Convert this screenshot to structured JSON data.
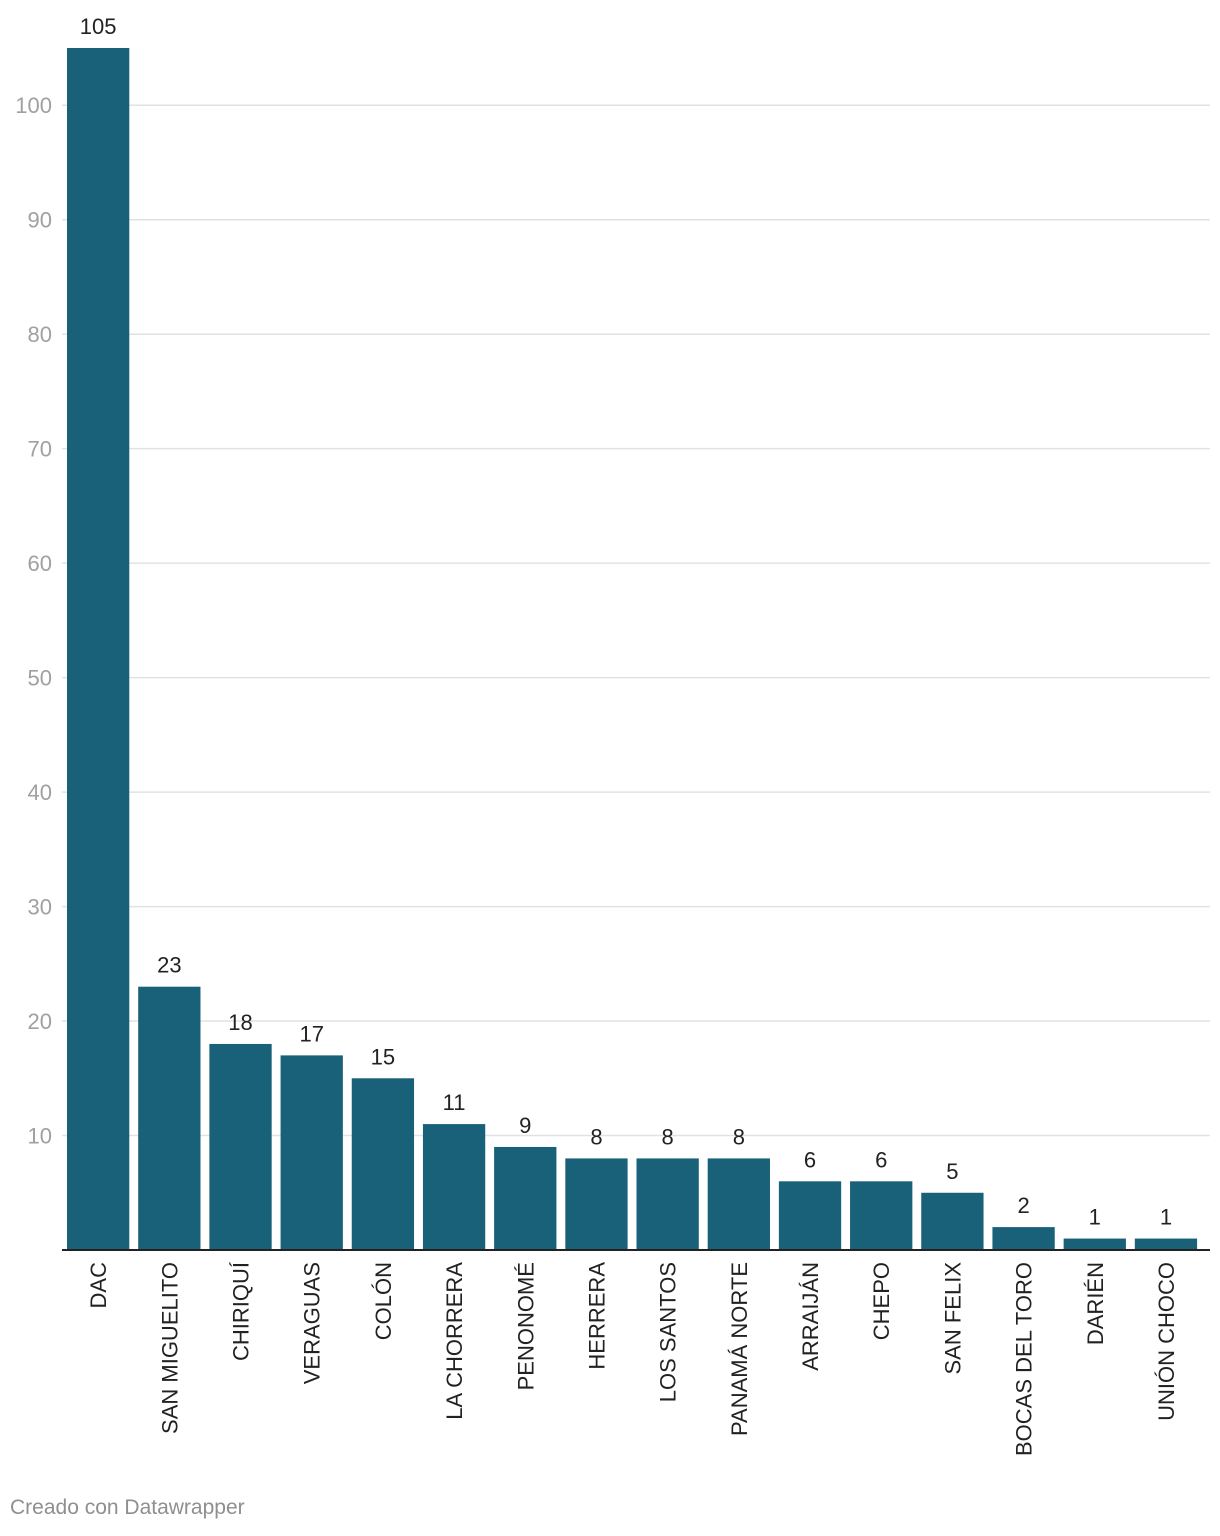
{
  "chart_data": {
    "type": "bar",
    "categories": [
      "DAC",
      "SAN MIGUELITO",
      "CHIRIQUÍ",
      "VERAGUAS",
      "COLÓN",
      "LA CHORRERA",
      "PENONOMÉ",
      "HERRERA",
      "LOS SANTOS",
      "PANAMÁ NORTE",
      "ARRAIJÁN",
      "CHEPO",
      "SAN FELIX",
      "BOCAS DEL TORO",
      "DARIÉN",
      "UNIÓN CHOCO"
    ],
    "values": [
      105,
      23,
      18,
      17,
      15,
      11,
      9,
      8,
      8,
      8,
      6,
      6,
      5,
      2,
      1,
      1
    ],
    "yticks": [
      10,
      20,
      30,
      40,
      50,
      60,
      70,
      80,
      90,
      100
    ],
    "ylim": [
      0,
      105
    ],
    "grid": true,
    "bar_color": "#186179",
    "title": "",
    "xlabel": "",
    "ylabel": ""
  },
  "footer": {
    "credit": "Creado con Datawrapper"
  }
}
